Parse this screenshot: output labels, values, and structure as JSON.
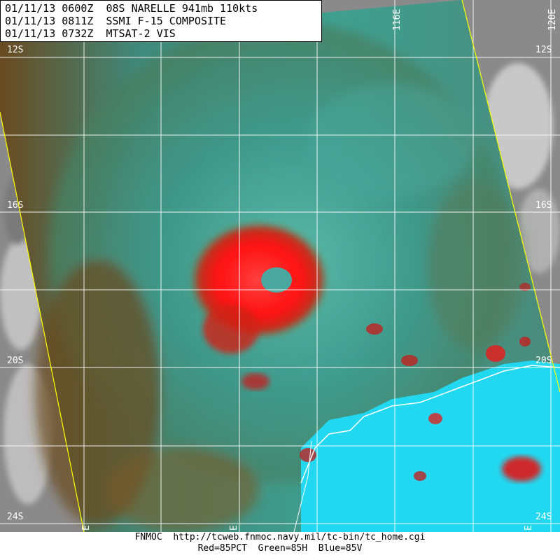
{
  "header": {
    "lines": [
      "01/11/13 0600Z  08S NARELLE 941mb 110kts",
      "01/11/13 0811Z  SSMI F-15 COMPOSITE",
      "01/11/13 0732Z  MTSAT-2 VIS"
    ]
  },
  "grid": {
    "lat_labels_left": [
      "12S",
      "16S",
      "20S",
      "24S"
    ],
    "lat_labels_right": [
      "12S",
      "16S",
      "20S",
      "24S"
    ],
    "lon_labels": [
      "116E",
      "120E",
      "E",
      "E",
      "E"
    ]
  },
  "footer": {
    "line1": "FNMOC  http://tcweb.fnmoc.navy.mil/tc-bin/tc_home.cgi",
    "line2": "Red=85PCT  Green=85H  Blue=85V"
  },
  "colors": {
    "convection": "#ff1a1a",
    "swath": "#3a9a8a",
    "land_cyan": "#22d8f0",
    "swath_edge": "#ffff00",
    "vis_gray": "#9a9a9a"
  }
}
